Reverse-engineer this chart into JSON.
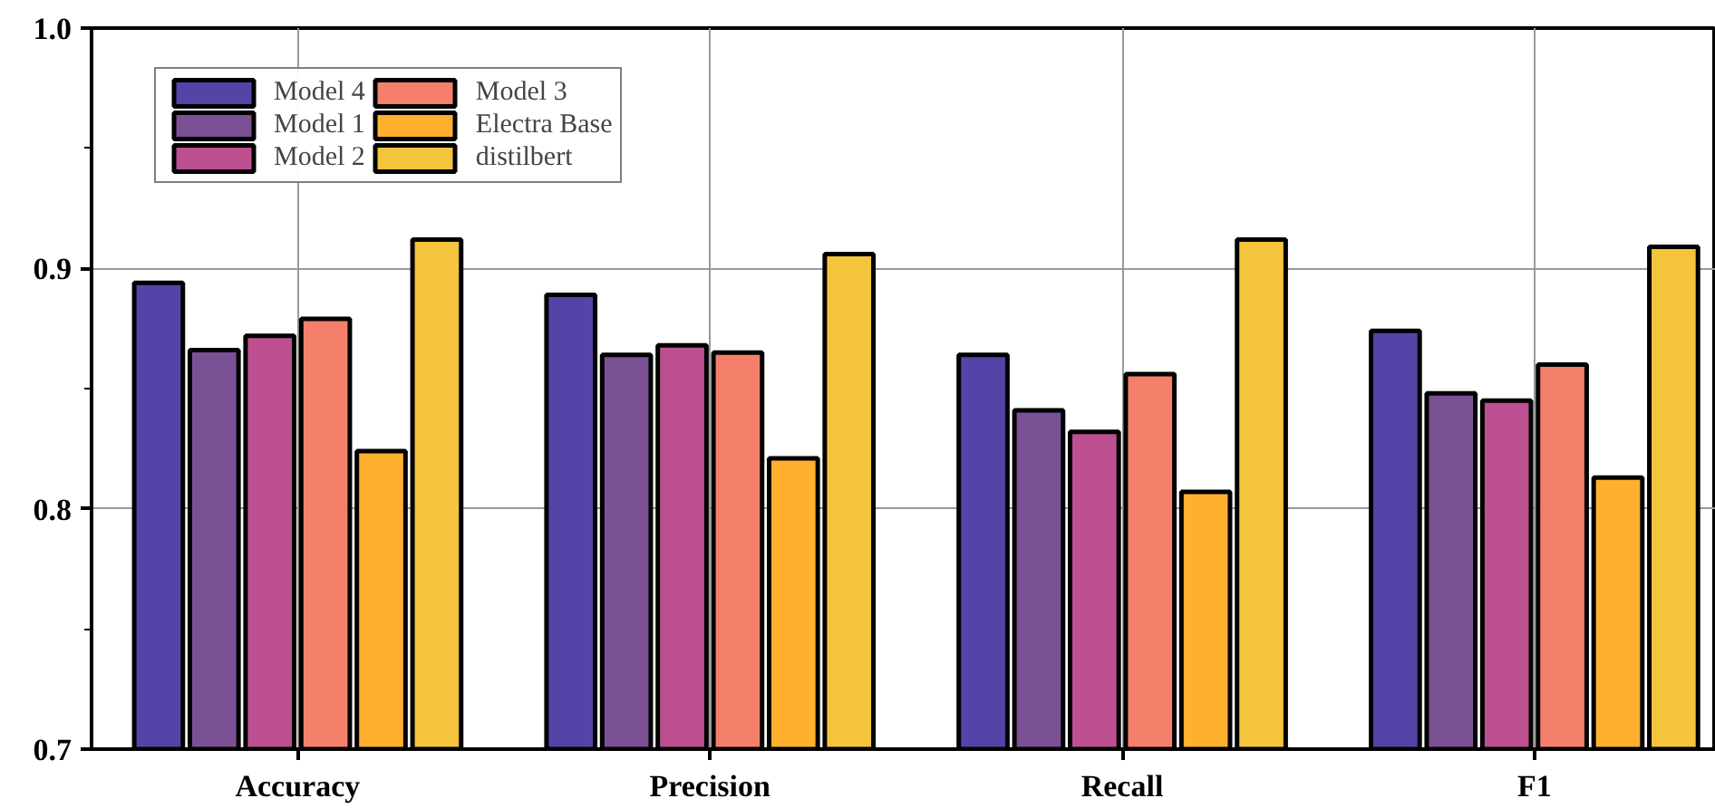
{
  "chart_data": {
    "type": "bar",
    "categories": [
      "Accuracy",
      "Precision",
      "Recall",
      "F1"
    ],
    "series": [
      {
        "name": "Model 4",
        "color": "#5345a8",
        "values": [
          0.894,
          0.889,
          0.864,
          0.874
        ]
      },
      {
        "name": "Model 1",
        "color": "#7b5195",
        "values": [
          0.866,
          0.864,
          0.841,
          0.848
        ]
      },
      {
        "name": "Model 2",
        "color": "#bc5090",
        "values": [
          0.872,
          0.868,
          0.832,
          0.845
        ]
      },
      {
        "name": "Model 3",
        "color": "#f47f6b",
        "values": [
          0.879,
          0.865,
          0.856,
          0.86
        ]
      },
      {
        "name": "Electra Base",
        "color": "#ffb02e",
        "values": [
          0.824,
          0.821,
          0.807,
          0.813
        ]
      },
      {
        "name": "distilbert",
        "color": "#f4c43c",
        "values": [
          0.912,
          0.906,
          0.912,
          0.909
        ]
      }
    ],
    "ylim": [
      0.7,
      1.0
    ],
    "yticks": [
      {
        "value": 0.7,
        "label": "0.7"
      },
      {
        "value": 0.8,
        "label": "0.8"
      },
      {
        "value": 0.9,
        "label": "0.9"
      },
      {
        "value": 1.0,
        "label": "1.0"
      }
    ],
    "grid": true,
    "legend": "top left"
  }
}
